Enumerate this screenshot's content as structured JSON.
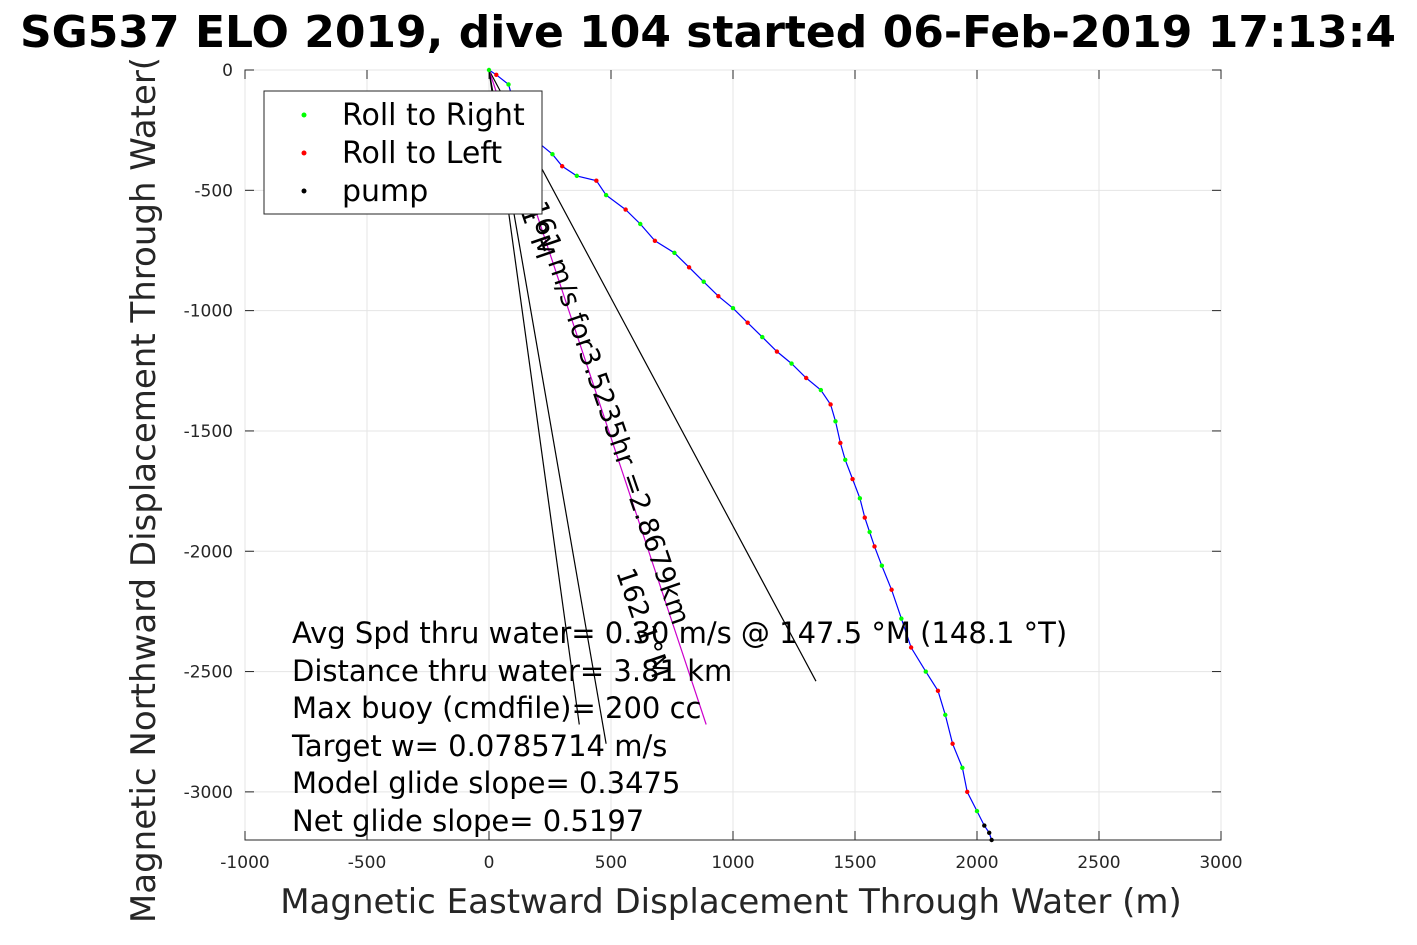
{
  "chart_data": {
    "type": "line",
    "title": "SG537 ELO 2019, dive 104 started 06-Feb-2019 17:13:4",
    "xlabel": "Magnetic Eastward Displacement Through Water (m)",
    "ylabel": "Magnetic Northward Displacement Through Water(",
    "xlim": [
      -1000,
      3000
    ],
    "ylim": [
      -3200,
      0
    ],
    "xticks": [
      "-1000",
      "-500",
      "0",
      "500",
      "1000",
      "1500",
      "2000",
      "2500",
      "3000"
    ],
    "yticks": [
      "0",
      "-500",
      "-1000",
      "-1500",
      "-2000",
      "-2500",
      "-3000"
    ],
    "grid": true,
    "legend": {
      "placement": "top-left",
      "entries": [
        {
          "label": "Roll to Right",
          "color": "#00ff00"
        },
        {
          "label": "Roll to Left",
          "color": "#ff0000"
        },
        {
          "label": "pump",
          "color": "#000000"
        }
      ]
    },
    "series": [
      {
        "name": "track",
        "color": "#0000ff",
        "points": [
          [
            0,
            0
          ],
          [
            30,
            -20
          ],
          [
            80,
            -60
          ],
          [
            100,
            -130
          ],
          [
            150,
            -250
          ],
          [
            200,
            -300
          ],
          [
            260,
            -350
          ],
          [
            300,
            -400
          ],
          [
            360,
            -440
          ],
          [
            440,
            -460
          ],
          [
            480,
            -520
          ],
          [
            560,
            -580
          ],
          [
            620,
            -640
          ],
          [
            680,
            -710
          ],
          [
            760,
            -760
          ],
          [
            820,
            -820
          ],
          [
            880,
            -880
          ],
          [
            940,
            -940
          ],
          [
            1000,
            -990
          ],
          [
            1060,
            -1050
          ],
          [
            1120,
            -1110
          ],
          [
            1180,
            -1170
          ],
          [
            1240,
            -1220
          ],
          [
            1300,
            -1280
          ],
          [
            1360,
            -1330
          ],
          [
            1400,
            -1390
          ],
          [
            1420,
            -1460
          ],
          [
            1440,
            -1550
          ],
          [
            1460,
            -1620
          ],
          [
            1490,
            -1700
          ],
          [
            1520,
            -1780
          ],
          [
            1540,
            -1860
          ],
          [
            1560,
            -1920
          ],
          [
            1580,
            -1980
          ],
          [
            1610,
            -2060
          ],
          [
            1650,
            -2160
          ],
          [
            1690,
            -2280
          ],
          [
            1730,
            -2400
          ],
          [
            1790,
            -2500
          ],
          [
            1840,
            -2580
          ],
          [
            1870,
            -2680
          ],
          [
            1900,
            -2800
          ],
          [
            1940,
            -2900
          ],
          [
            1960,
            -3000
          ],
          [
            2000,
            -3080
          ],
          [
            2030,
            -3140
          ],
          [
            2050,
            -3170
          ],
          [
            2060,
            -3200
          ]
        ]
      }
    ],
    "vectors": [
      {
        "label": "",
        "from": [
          0,
          0
        ],
        "to": [
          1340,
          -2540
        ],
        "color": "#000000"
      },
      {
        "label": "",
        "from": [
          0,
          0
        ],
        "to": [
          890,
          -2720
        ],
        "color": "#cc00cc"
      },
      {
        "label": "",
        "from": [
          0,
          0
        ],
        "to": [
          370,
          -2720
        ],
        "color": "#000000"
      },
      {
        "label": "",
        "from": [
          0,
          0
        ],
        "to": [
          480,
          -2800
        ],
        "color": "#000000"
      }
    ],
    "vector_texts": [
      {
        "text": "161 m/s for3.5235hr =2.8679km",
        "angle": 71
      },
      {
        "text": "162.1°M",
        "angle": 71
      },
      {
        "text": "1°M",
        "angle": 71
      }
    ],
    "stats": [
      "Avg Spd thru water= 0.30 m/s @ 147.5 °M (148.1 °T)",
      "Distance thru water= 3.81 km",
      "Max buoy (cmdfile)= 200 cc",
      "Target w= 0.0785714 m/s",
      "Model glide slope= 0.3475",
      "Net glide slope= 0.5197"
    ]
  }
}
